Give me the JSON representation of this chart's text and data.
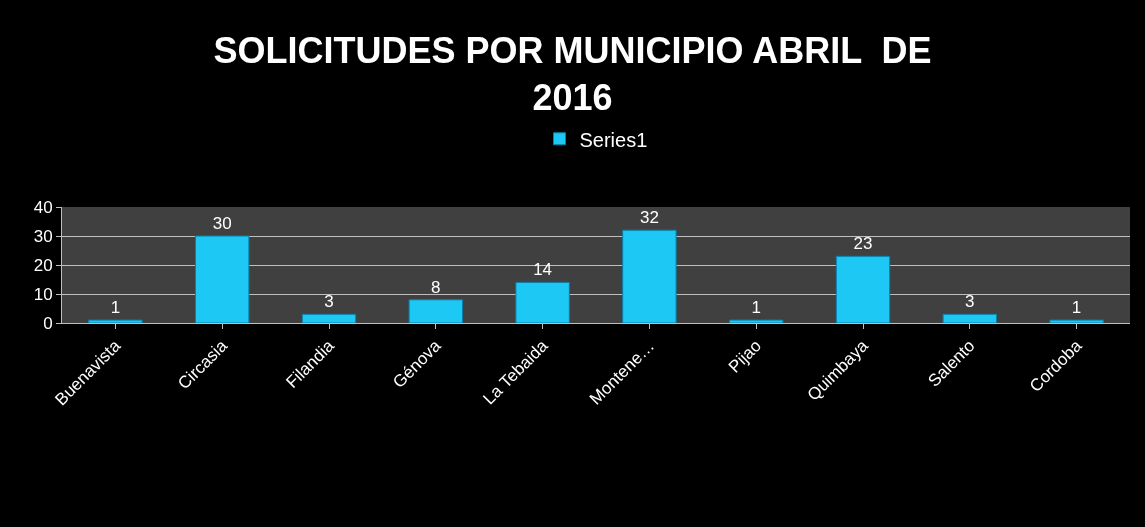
{
  "chart_data": {
    "type": "bar",
    "title": "SOLICITUDES POR MUNICIPIO ABRIL  DE\n2016",
    "categories": [
      "Buenavista",
      "Circasia",
      "Filandia",
      "Génova",
      "La Tebaida",
      "Montene…",
      "Pijao",
      "Quimbaya",
      "Salento",
      "Cordoba"
    ],
    "series": [
      {
        "name": "Series1",
        "color": "#1ec8f5",
        "values": [
          1,
          30,
          3,
          8,
          14,
          32,
          1,
          23,
          3,
          1
        ]
      }
    ],
    "ylim": [
      0,
      40
    ],
    "yticks": [
      0,
      10,
      20,
      30,
      40
    ],
    "grid": "y",
    "legend": "top",
    "data_labels": true
  }
}
